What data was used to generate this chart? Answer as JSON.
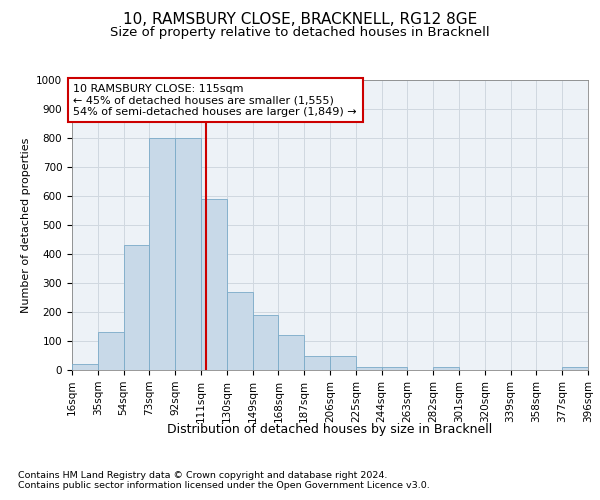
{
  "title1": "10, RAMSBURY CLOSE, BRACKNELL, RG12 8GE",
  "title2": "Size of property relative to detached houses in Bracknell",
  "xlabel": "Distribution of detached houses by size in Bracknell",
  "ylabel": "Number of detached properties",
  "footnote1": "Contains HM Land Registry data © Crown copyright and database right 2024.",
  "footnote2": "Contains public sector information licensed under the Open Government Licence v3.0.",
  "annotation_title": "10 RAMSBURY CLOSE: 115sqm",
  "annotation_line1": "← 45% of detached houses are smaller (1,555)",
  "annotation_line2": "54% of semi-detached houses are larger (1,849) →",
  "bin_labels": [
    "16sqm",
    "35sqm",
    "54sqm",
    "73sqm",
    "92sqm",
    "111sqm",
    "130sqm",
    "149sqm",
    "168sqm",
    "187sqm",
    "206sqm",
    "225sqm",
    "244sqm",
    "263sqm",
    "282sqm",
    "301sqm",
    "320sqm",
    "339sqm",
    "358sqm",
    "377sqm",
    "396sqm"
  ],
  "bin_left_edges": [
    16,
    35,
    54,
    73,
    92,
    111,
    130,
    149,
    168,
    187,
    206,
    225,
    244,
    263,
    282,
    301,
    320,
    339,
    358,
    377
  ],
  "bin_width": 19,
  "bar_heights": [
    20,
    130,
    430,
    800,
    800,
    590,
    270,
    190,
    120,
    50,
    50,
    10,
    10,
    0,
    10,
    0,
    0,
    0,
    0,
    10
  ],
  "bar_color": "#c8d9e8",
  "bar_edge_color": "#7aaac8",
  "vline_x": 115,
  "vline_color": "#cc0000",
  "annotation_box_color": "#cc0000",
  "grid_color": "#d0d8e0",
  "background_color": "#edf2f7",
  "ylim": [
    0,
    1000
  ],
  "yticks": [
    0,
    100,
    200,
    300,
    400,
    500,
    600,
    700,
    800,
    900,
    1000
  ],
  "xlim_min": 16,
  "xlim_max": 396,
  "title_fontsize": 11,
  "subtitle_fontsize": 9.5,
  "ylabel_fontsize": 8,
  "xlabel_fontsize": 9,
  "tick_fontsize": 7.5,
  "annotation_fontsize": 8,
  "footnote_fontsize": 6.8
}
